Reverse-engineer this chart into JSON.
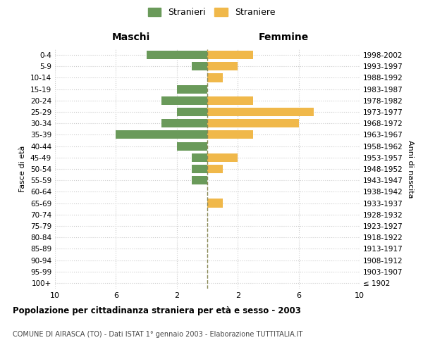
{
  "age_groups": [
    "100+",
    "95-99",
    "90-94",
    "85-89",
    "80-84",
    "75-79",
    "70-74",
    "65-69",
    "60-64",
    "55-59",
    "50-54",
    "45-49",
    "40-44",
    "35-39",
    "30-34",
    "25-29",
    "20-24",
    "15-19",
    "10-14",
    "5-9",
    "0-4"
  ],
  "birth_years": [
    "≤ 1902",
    "1903-1907",
    "1908-1912",
    "1913-1917",
    "1918-1922",
    "1923-1927",
    "1928-1932",
    "1933-1937",
    "1938-1942",
    "1943-1947",
    "1948-1952",
    "1953-1957",
    "1958-1962",
    "1963-1967",
    "1968-1972",
    "1973-1977",
    "1978-1982",
    "1983-1987",
    "1988-1992",
    "1993-1997",
    "1998-2002"
  ],
  "males": [
    0,
    0,
    0,
    0,
    0,
    0,
    0,
    0,
    0,
    1,
    1,
    1,
    2,
    6,
    3,
    2,
    3,
    2,
    0,
    1,
    4
  ],
  "females": [
    0,
    0,
    0,
    0,
    0,
    0,
    0,
    1,
    0,
    0,
    1,
    2,
    0,
    3,
    6,
    7,
    3,
    0,
    1,
    2,
    3
  ],
  "male_color": "#6a9a5a",
  "female_color": "#f0b84a",
  "center_line_color": "#888855",
  "grid_color": "#cccccc",
  "bg_color": "#ffffff",
  "title": "Popolazione per cittadinanza straniera per età e sesso - 2003",
  "subtitle": "COMUNE DI AIRASCA (TO) - Dati ISTAT 1° gennaio 2003 - Elaborazione TUTTITALIA.IT",
  "xlabel_left": "Maschi",
  "xlabel_right": "Femmine",
  "ylabel_left": "Fasce di età",
  "ylabel_right": "Anni di nascita",
  "legend_males": "Stranieri",
  "legend_females": "Straniere",
  "xlim": 10
}
